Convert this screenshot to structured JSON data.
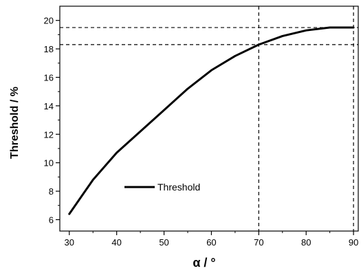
{
  "chart_data": {
    "type": "line",
    "title": "",
    "xlabel": "α / °",
    "ylabel": "Threshold / %",
    "xlim": [
      28,
      91
    ],
    "ylim": [
      5.2,
      21
    ],
    "x_ticks": [
      30,
      40,
      50,
      60,
      70,
      80,
      90
    ],
    "y_ticks": [
      6,
      8,
      10,
      12,
      14,
      16,
      18,
      20
    ],
    "grid": false,
    "legend_position": "lower-center",
    "series": [
      {
        "name": "Threshold",
        "color": "#000000",
        "x": [
          30,
          35,
          40,
          45,
          50,
          55,
          60,
          65,
          70,
          75,
          80,
          85,
          90
        ],
        "y": [
          6.4,
          8.8,
          10.7,
          12.2,
          13.7,
          15.2,
          16.5,
          17.5,
          18.3,
          18.9,
          19.3,
          19.5,
          19.5
        ]
      }
    ],
    "reference_lines": [
      {
        "orientation": "horizontal",
        "value": 19.5
      },
      {
        "orientation": "horizontal",
        "value": 18.3
      },
      {
        "orientation": "vertical",
        "value": 70
      },
      {
        "orientation": "vertical",
        "value": 90
      }
    ]
  }
}
